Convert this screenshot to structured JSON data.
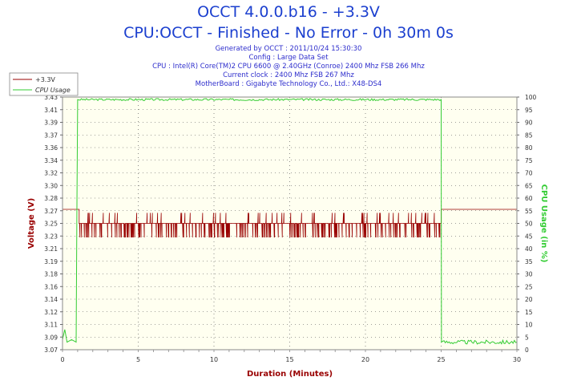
{
  "header": {
    "title": "OCCT 4.0.0.b16 - +3.3V",
    "subtitle": "CPU:OCCT - Finished - No Error - 0h 30m 0s",
    "info": [
      "Generated by OCCT : 2011/10/24 15:30:30",
      "Config : Large Data Set",
      "CPU : Intel(R) Core(TM)2 CPU 6600 @ 2.40GHz (Conroe) 2400 Mhz FSB 266 Mhz",
      "Current clock : 2400 Mhz FSB 267 Mhz",
      "MotherBoard : Gigabyte Technology Co., Ltd.: X48-DS4"
    ]
  },
  "chart_data": {
    "type": "line",
    "xlabel": "Duration (Minutes)",
    "ylabel": "Voltage (V)",
    "y2label": "CPU Usage (in %)",
    "xlim": [
      0,
      30
    ],
    "ylim": [
      3.07,
      3.43
    ],
    "y2lim": [
      0,
      100
    ],
    "x_ticks": [
      0,
      5,
      10,
      15,
      20,
      25,
      30
    ],
    "y_ticks": [
      "3.07",
      "3.09",
      "3.11",
      "3.12",
      "3.14",
      "3.16",
      "3.18",
      "3.19",
      "3.21",
      "3.23",
      "3.25",
      "3.27",
      "3.28",
      "3.30",
      "3.32",
      "3.34",
      "3.36",
      "3.37",
      "3.39",
      "3.41",
      "3.43"
    ],
    "y2_ticks": [
      0,
      5,
      10,
      15,
      20,
      25,
      30,
      35,
      40,
      45,
      50,
      55,
      60,
      65,
      70,
      75,
      80,
      85,
      90,
      95,
      100
    ],
    "grid": true,
    "legend_position": "top-left",
    "colors": {
      "voltage": "#990000",
      "cpu": "#33cc33",
      "title": "#1b3fcf",
      "background": "#fffff0"
    },
    "series": [
      {
        "name": "+3.3V",
        "axis": "left",
        "description_points": [
          [
            0,
            3.27
          ],
          [
            1.1,
            3.27
          ],
          [
            1.1,
            3.25
          ],
          [
            25,
            3.25
          ],
          [
            25,
            3.27
          ],
          [
            30,
            3.27
          ]
        ],
        "noise": {
          "x_range": [
            1.1,
            25
          ],
          "base": 3.25,
          "low": 3.23,
          "high": 3.265
        }
      },
      {
        "name": "CPU Usage",
        "axis": "right",
        "points": [
          [
            0,
            4
          ],
          [
            0.15,
            8
          ],
          [
            0.3,
            3
          ],
          [
            0.6,
            4
          ],
          [
            0.9,
            3
          ],
          [
            0.95,
            55
          ],
          [
            1.0,
            99
          ],
          [
            25,
            99
          ],
          [
            25.02,
            3
          ],
          [
            30,
            3
          ]
        ]
      }
    ]
  }
}
